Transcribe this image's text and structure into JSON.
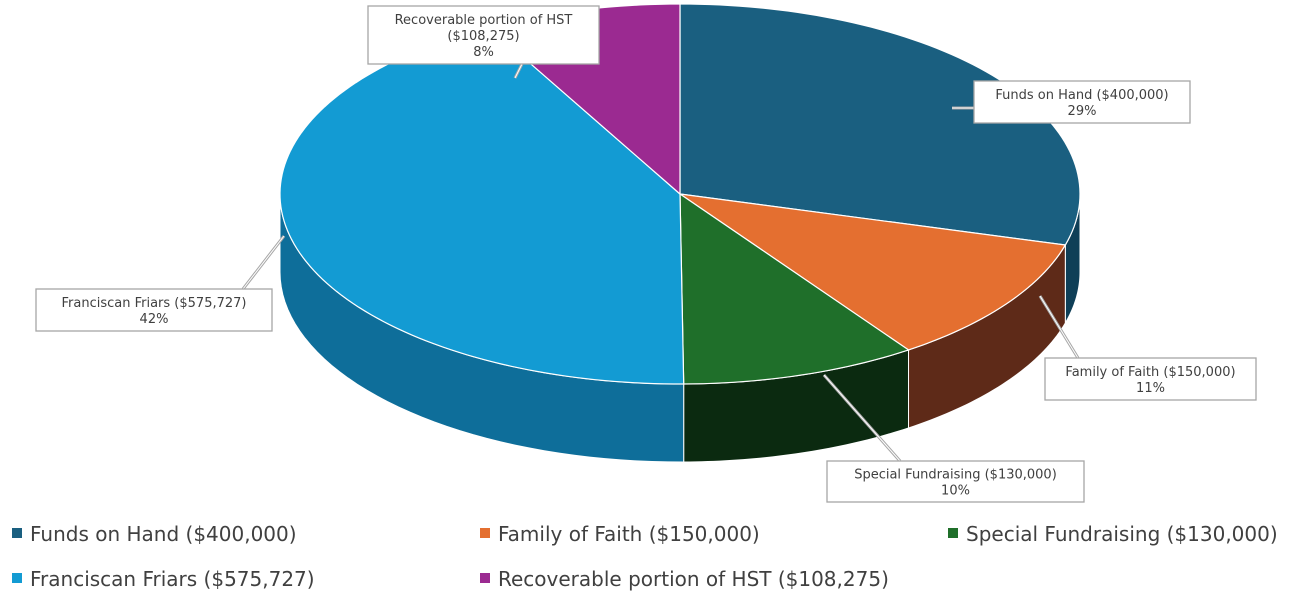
{
  "chart_data": {
    "type": "pie",
    "title": "",
    "style": "3d",
    "legend_position": "bottom",
    "slices": [
      {
        "label": "Funds on Hand ($400,000)",
        "name": "Funds on Hand",
        "value": 400000,
        "percent_label": "29%",
        "color": "#1a5f80",
        "side_color": "#0f3f57"
      },
      {
        "label": "Family of Faith ($150,000)",
        "name": "Family of Faith",
        "value": 150000,
        "percent_label": "11%",
        "color": "#e46f30",
        "side_color": "#5e2a18"
      },
      {
        "label": "Special Fundraising ($130,000)",
        "name": "Special Fundraising",
        "value": 130000,
        "percent_label": "10%",
        "color": "#1f6f2a",
        "side_color": "#0b2a10"
      },
      {
        "label": "Franciscan Friars ($575,727)",
        "name": "Franciscan Friars",
        "value": 575727,
        "percent_label": "42%",
        "color": "#139bd3",
        "side_color": "#0e6e9a"
      },
      {
        "label": "Recoverable portion of HST ($108,275)",
        "name": "Recoverable portion of HST",
        "value": 108275,
        "percent_label": "8%",
        "color": "#9b2a91",
        "side_color": "#5e1a57"
      }
    ],
    "callouts": [
      {
        "lines": [
          "Funds on Hand ($400,000)",
          "29%"
        ]
      },
      {
        "lines": [
          "Family of Faith ($150,000)",
          "11%"
        ]
      },
      {
        "lines": [
          "Special Fundraising ($130,000)",
          "10%"
        ]
      },
      {
        "lines": [
          "Franciscan Friars ($575,727)",
          "42%"
        ]
      },
      {
        "lines": [
          "Recoverable portion of HST",
          "($108,275)",
          "8%"
        ]
      }
    ],
    "legend": [
      "Funds on Hand ($400,000)",
      "Family of Faith ($150,000)",
      "Special Fundraising ($130,000)",
      "Franciscan Friars ($575,727)",
      "Recoverable portion of HST ($108,275)"
    ]
  }
}
